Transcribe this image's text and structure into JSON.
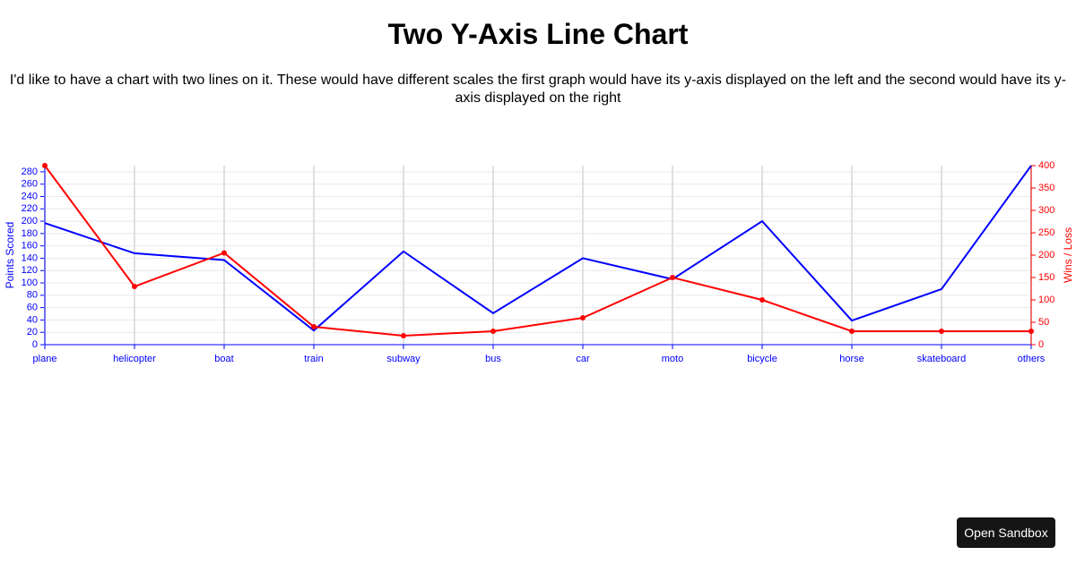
{
  "chart_data": {
    "type": "line",
    "title": "Two Y-Axis Line Chart",
    "subtitle": "I'd like to have a chart with two lines on it. These would have different scales the first graph would have its y-axis displayed on the left and the second would have its y-axis displayed on the right",
    "categories": [
      "plane",
      "helicopter",
      "boat",
      "train",
      "subway",
      "bus",
      "car",
      "moto",
      "bicycle",
      "horse",
      "skateboard",
      "others"
    ],
    "series": [
      {
        "color": "#0000ff",
        "axis": "y",
        "values": [
          197,
          148,
          137,
          23,
          151,
          51,
          140,
          106,
          200,
          39,
          90,
          290
        ]
      },
      {
        "color": "#ff0000",
        "axis": "y2",
        "markers": true,
        "values": [
          400,
          130,
          205,
          40,
          20,
          30,
          60,
          150,
          100,
          30,
          30,
          30
        ]
      }
    ],
    "ylabel": "Points Scored",
    "y2label": "Wins / Loss",
    "ylim": [
      0,
      290
    ],
    "yticks": [
      0,
      20,
      40,
      60,
      80,
      100,
      120,
      140,
      160,
      180,
      200,
      220,
      240,
      260,
      280
    ],
    "y2lim": [
      0,
      400
    ],
    "y2ticks": [
      0,
      50,
      100,
      150,
      200,
      250,
      300,
      350,
      400
    ],
    "grid": true,
    "button": "Open Sandbox"
  }
}
